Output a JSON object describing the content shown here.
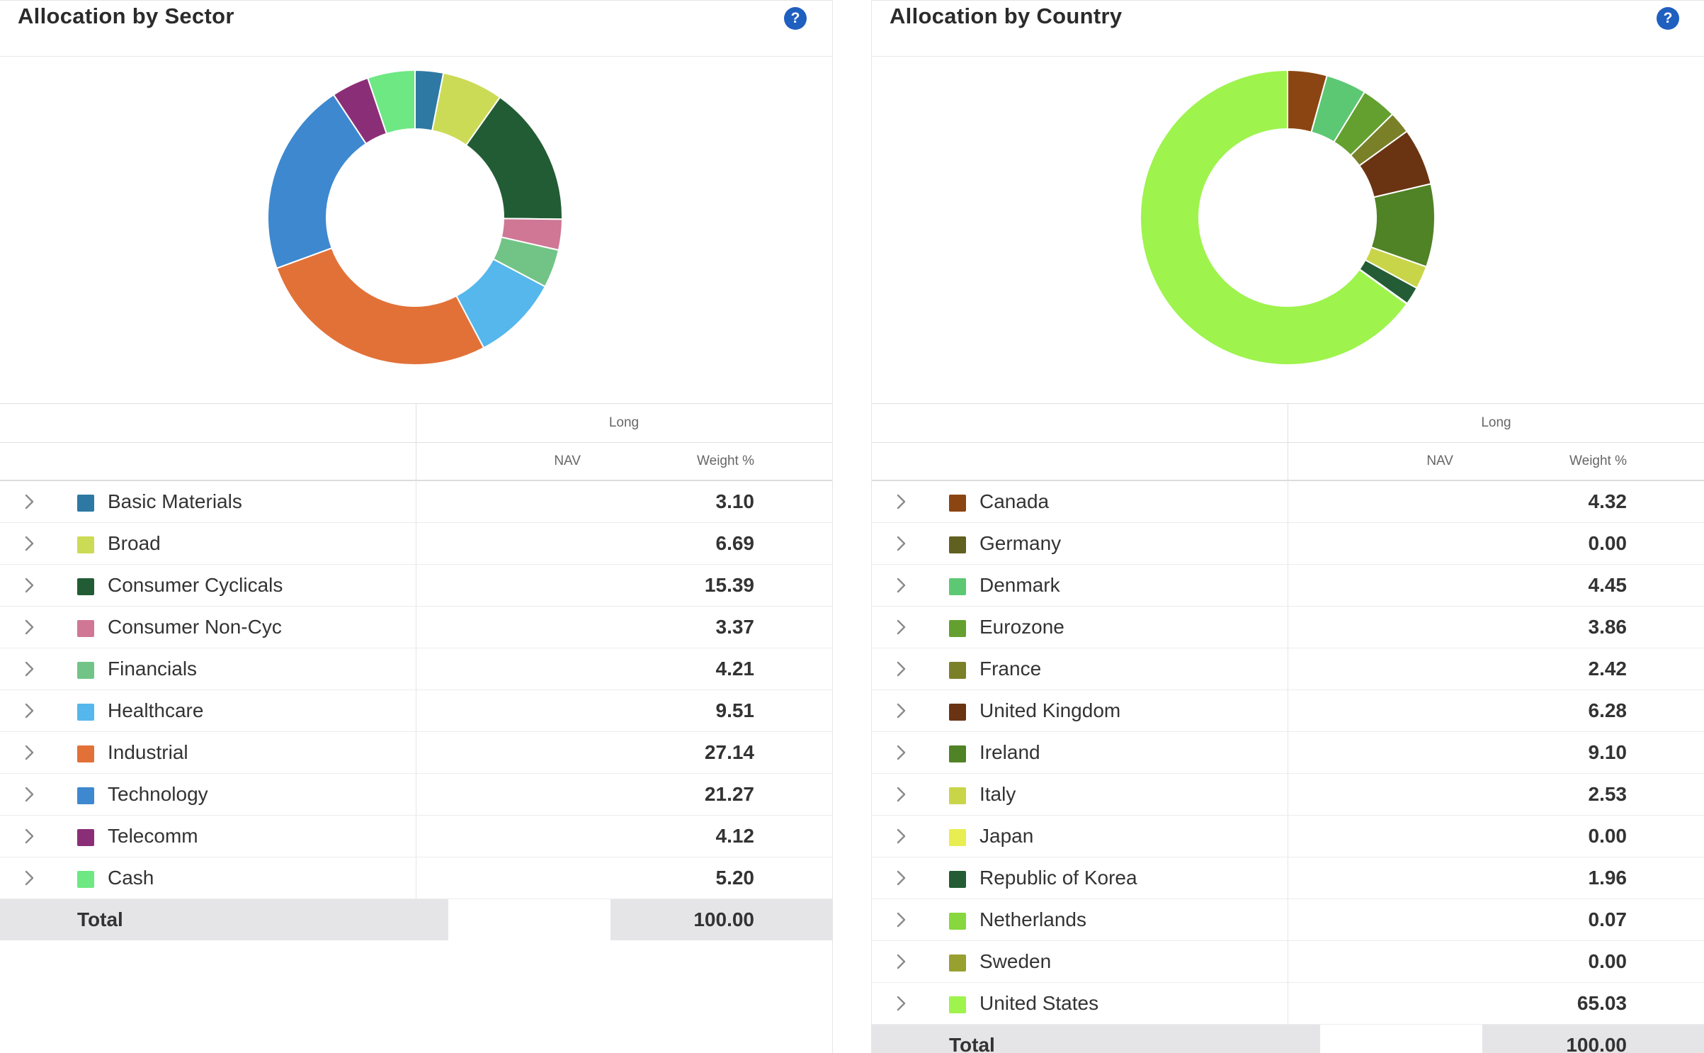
{
  "panels": [
    {
      "title": "Allocation by Sector",
      "help": "?",
      "columns": {
        "group": "Long",
        "nav": "NAV",
        "weight": "Weight %"
      },
      "rows": [
        {
          "label": "Basic Materials",
          "weight": "3.10",
          "color": "#2e79a3"
        },
        {
          "label": "Broad",
          "weight": "6.69",
          "color": "#ccdb55"
        },
        {
          "label": "Consumer Cyclicals",
          "weight": "15.39",
          "color": "#225c34"
        },
        {
          "label": "Consumer Non-Cyc",
          "weight": "3.37",
          "color": "#cf7795"
        },
        {
          "label": "Financials",
          "weight": "4.21",
          "color": "#72c486"
        },
        {
          "label": "Healthcare",
          "weight": "9.51",
          "color": "#55b7ec"
        },
        {
          "label": "Industrial",
          "weight": "27.14",
          "color": "#e27138"
        },
        {
          "label": "Technology",
          "weight": "21.27",
          "color": "#3e88d0"
        },
        {
          "label": "Telecomm",
          "weight": "4.12",
          "color": "#8a2f77"
        },
        {
          "label": "Cash",
          "weight": "5.20",
          "color": "#6ee883"
        }
      ],
      "total": {
        "label": "Total",
        "weight": "100.00"
      }
    },
    {
      "title": "Allocation by Country",
      "help": "?",
      "columns": {
        "group": "Long",
        "nav": "NAV",
        "weight": "Weight %"
      },
      "rows": [
        {
          "label": "Canada",
          "weight": "4.32",
          "color": "#8b4513"
        },
        {
          "label": "Germany",
          "weight": "0.00",
          "color": "#606020"
        },
        {
          "label": "Denmark",
          "weight": "4.45",
          "color": "#5dc873"
        },
        {
          "label": "Eurozone",
          "weight": "3.86",
          "color": "#64a030"
        },
        {
          "label": "France",
          "weight": "2.42",
          "color": "#7a8028"
        },
        {
          "label": "United Kingdom",
          "weight": "6.28",
          "color": "#6a3412"
        },
        {
          "label": "Ireland",
          "weight": "9.10",
          "color": "#508226"
        },
        {
          "label": "Italy",
          "weight": "2.53",
          "color": "#c9d549"
        },
        {
          "label": "Japan",
          "weight": "0.00",
          "color": "#e8ee52"
        },
        {
          "label": "Republic of Korea",
          "weight": "1.96",
          "color": "#235c35"
        },
        {
          "label": "Netherlands",
          "weight": "0.07",
          "color": "#86d83e"
        },
        {
          "label": "Sweden",
          "weight": "0.00",
          "color": "#98a030"
        },
        {
          "label": "United States",
          "weight": "65.03",
          "color": "#9ef34d"
        }
      ],
      "total": {
        "label": "Total",
        "weight": "100.00"
      }
    }
  ],
  "chart_data": [
    {
      "type": "pie",
      "categories": [
        "Basic Materials",
        "Broad",
        "Consumer Cyclicals",
        "Consumer Non-Cyc",
        "Financials",
        "Healthcare",
        "Industrial",
        "Technology",
        "Telecomm",
        "Cash"
      ],
      "values": [
        3.1,
        6.69,
        15.39,
        3.37,
        4.21,
        9.51,
        27.14,
        21.27,
        4.12,
        5.2
      ],
      "colors": [
        "#2e79a3",
        "#ccdb55",
        "#225c34",
        "#cf7795",
        "#72c486",
        "#55b7ec",
        "#e27138",
        "#3e88d0",
        "#8a2f77",
        "#6ee883"
      ],
      "title": "Allocation by Sector"
    },
    {
      "type": "pie",
      "categories": [
        "Canada",
        "Germany",
        "Denmark",
        "Eurozone",
        "France",
        "United Kingdom",
        "Ireland",
        "Italy",
        "Japan",
        "Republic of Korea",
        "Netherlands",
        "Sweden",
        "United States"
      ],
      "values": [
        4.32,
        0.0,
        4.45,
        3.86,
        2.42,
        6.28,
        9.1,
        2.53,
        0.0,
        1.96,
        0.07,
        0.0,
        65.03
      ],
      "colors": [
        "#8b4513",
        "#606020",
        "#5dc873",
        "#64a030",
        "#7a8028",
        "#6a3412",
        "#508226",
        "#c9d549",
        "#e8ee52",
        "#235c35",
        "#86d83e",
        "#98a030",
        "#9ef34d"
      ],
      "title": "Allocation by Country"
    }
  ]
}
